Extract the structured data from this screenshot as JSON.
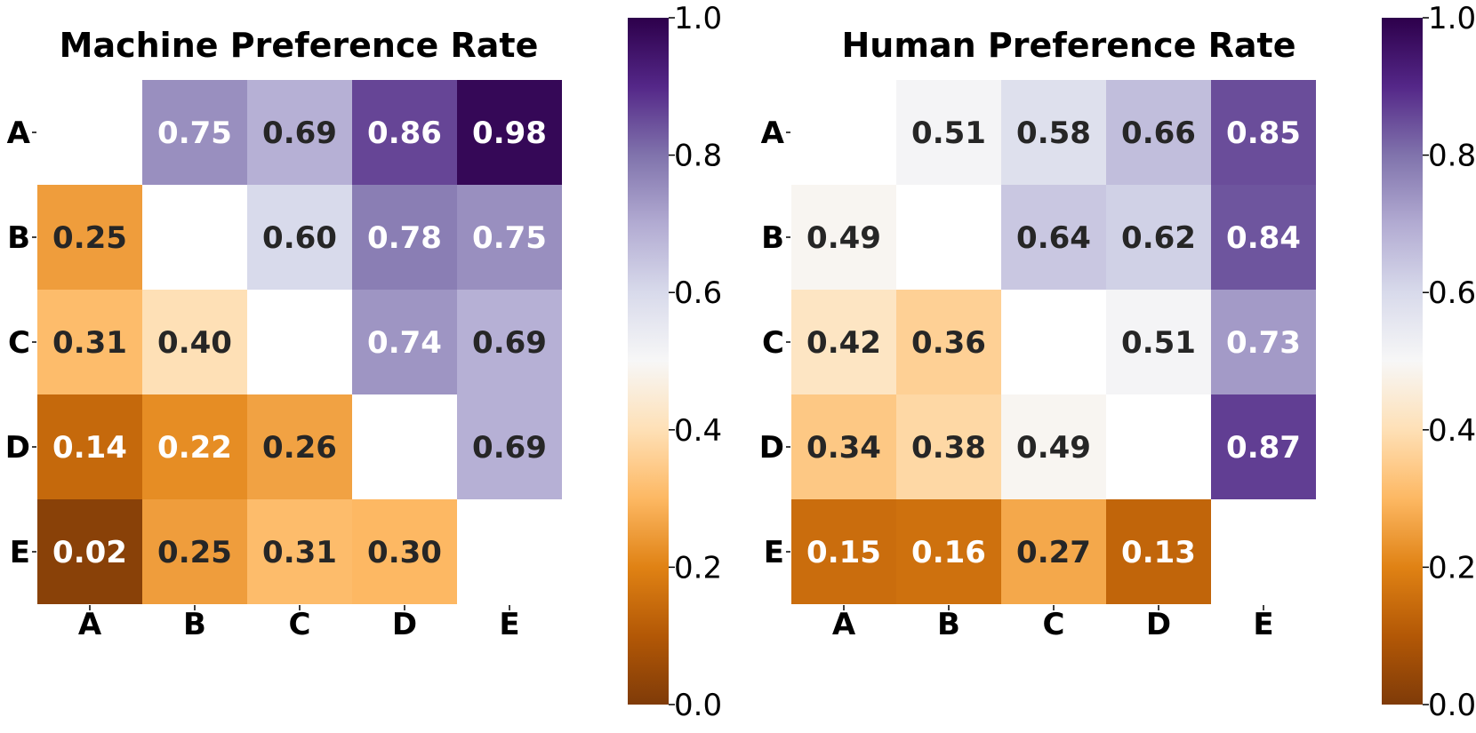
{
  "chart_data": [
    {
      "type": "heatmap",
      "title": "Machine Preference Rate",
      "rows": [
        "A",
        "B",
        "C",
        "D",
        "E"
      ],
      "cols": [
        "A",
        "B",
        "C",
        "D",
        "E"
      ],
      "values": [
        [
          null,
          0.75,
          0.69,
          0.86,
          0.98
        ],
        [
          0.25,
          null,
          0.6,
          0.78,
          0.75
        ],
        [
          0.31,
          0.4,
          null,
          0.74,
          0.69
        ],
        [
          0.14,
          0.22,
          0.26,
          null,
          0.69
        ],
        [
          0.02,
          0.25,
          0.31,
          0.3,
          null
        ]
      ],
      "colorbar": {
        "min": 0.0,
        "max": 1.0,
        "ticks": [
          "0.0",
          "0.2",
          "0.4",
          "0.6",
          "0.8",
          "1.0"
        ]
      },
      "colormap": "PuOr"
    },
    {
      "type": "heatmap",
      "title": "Human Preference Rate",
      "rows": [
        "A",
        "B",
        "C",
        "D",
        "E"
      ],
      "cols": [
        "A",
        "B",
        "C",
        "D",
        "E"
      ],
      "values": [
        [
          null,
          0.51,
          0.58,
          0.66,
          0.85
        ],
        [
          0.49,
          null,
          0.64,
          0.62,
          0.84
        ],
        [
          0.42,
          0.36,
          null,
          0.51,
          0.73
        ],
        [
          0.34,
          0.38,
          0.49,
          null,
          0.87
        ],
        [
          0.15,
          0.16,
          0.27,
          0.13,
          null
        ]
      ],
      "colorbar": {
        "min": 0.0,
        "max": 1.0,
        "ticks": [
          "0.0",
          "0.2",
          "0.4",
          "0.6",
          "0.8",
          "1.0"
        ]
      },
      "colormap": "PuOr"
    }
  ]
}
